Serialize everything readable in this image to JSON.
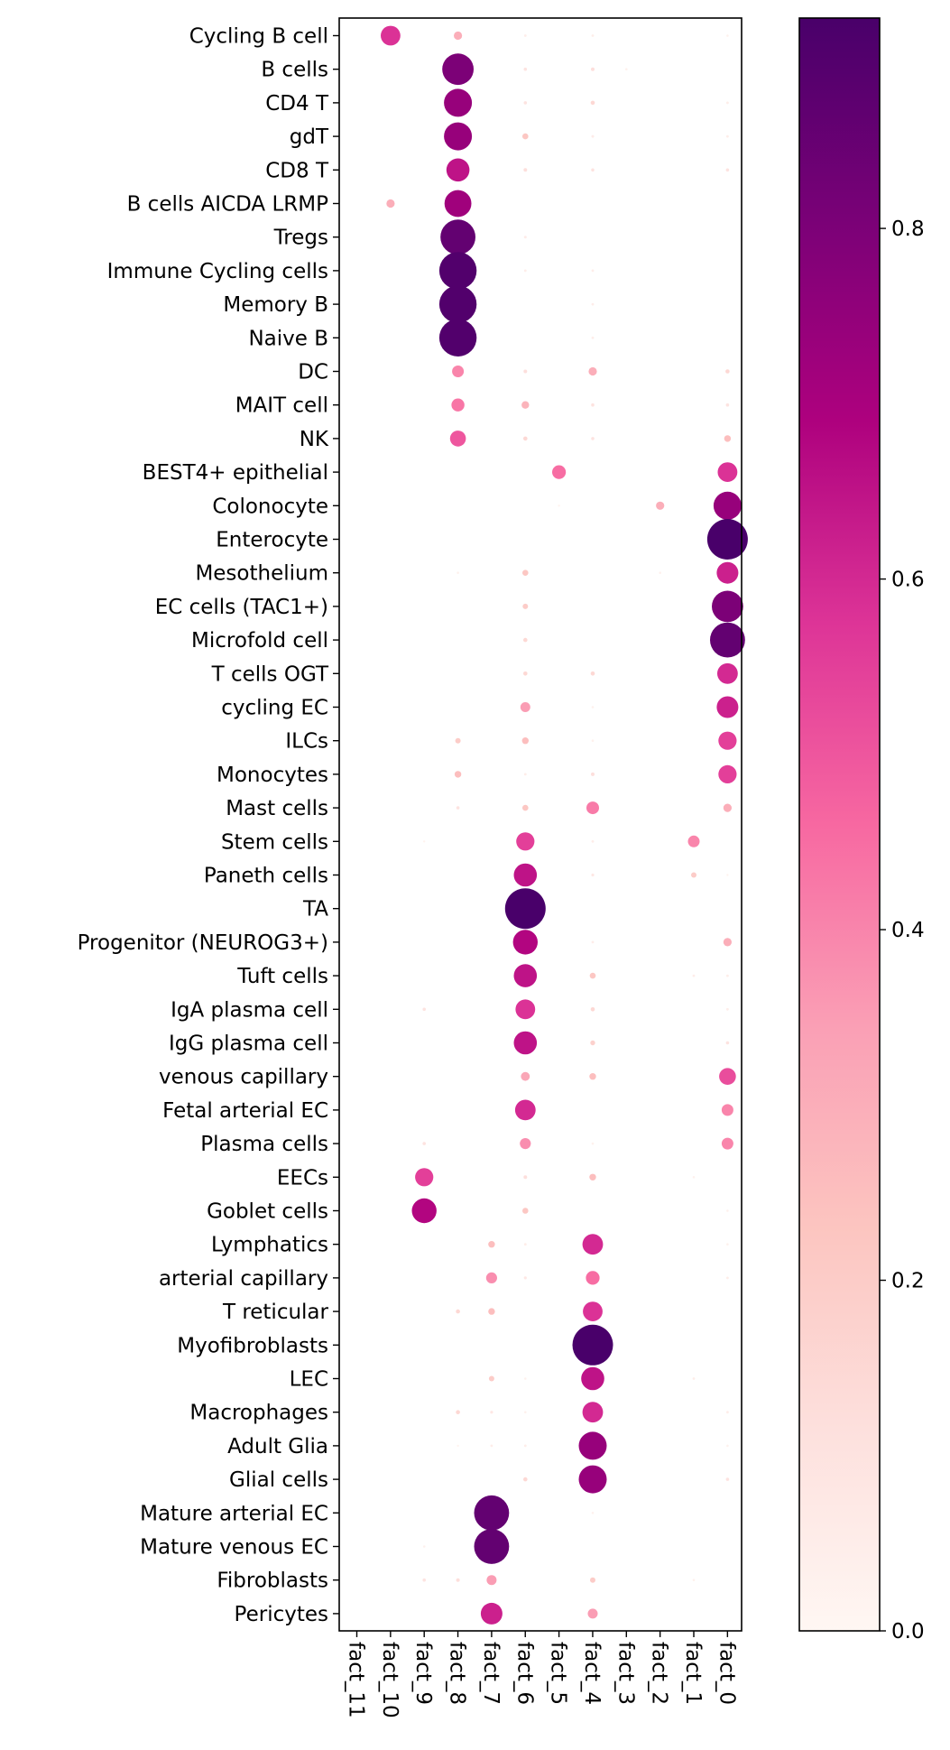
{
  "chart_data": {
    "type": "dotplot",
    "title": "",
    "xlabel": "",
    "ylabel": "",
    "colormap": "RdPu",
    "color_range": [
      0.0,
      0.92
    ],
    "colorbar_ticks": [
      "0.0",
      "0.2",
      "0.4",
      "0.6",
      "0.8"
    ],
    "colorbar_tick_values": [
      0.0,
      0.2,
      0.4,
      0.6,
      0.8
    ],
    "columns": [
      "fact_11",
      "fact_10",
      "fact_9",
      "fact_8",
      "fact_7",
      "fact_6",
      "fact_5",
      "fact_4",
      "fact_3",
      "fact_2",
      "fact_1",
      "fact_0"
    ],
    "rows": [
      "Cycling B cell",
      "B cells",
      "CD4 T",
      "gdT",
      "CD8 T",
      "B cells AICDA LRMP",
      "Tregs",
      "Immune Cycling cells",
      "Memory B",
      "Naive B",
      "DC",
      "MAIT cell",
      "NK",
      "BEST4+ epithelial",
      "Colonocyte",
      "Enterocyte",
      "Mesothelium",
      "EC cells (TAC1+)",
      "Microfold cell",
      "T cells OGT",
      "cycling EC",
      "ILCs",
      "Monocytes",
      "Mast cells",
      "Stem cells",
      "Paneth cells",
      "TA",
      "Progenitor (NEUROG3+)",
      "Tuft cells",
      "IgA plasma cell",
      "IgG plasma cell",
      "venous capillary",
      "Fetal arterial EC",
      "Plasma cells",
      "EECs",
      "Goblet cells",
      "Lymphatics",
      "arterial capillary",
      "T reticular",
      "Myofibroblasts",
      "LEC",
      "Macrophages",
      "Adult Glia",
      "Glial cells",
      "Mature arterial EC",
      "Mature venous EC",
      "Fibroblasts",
      "Pericytes"
    ],
    "values": [
      [
        0,
        0.58,
        0,
        0.3,
        0,
        0.05,
        0,
        0.05,
        0,
        0,
        0,
        0.03
      ],
      [
        0,
        0,
        0,
        0.8,
        0,
        0.1,
        0,
        0.12,
        0.03,
        0,
        0,
        0
      ],
      [
        0,
        0,
        0,
        0.74,
        0,
        0.1,
        0,
        0.15,
        0,
        0,
        0,
        0.05
      ],
      [
        0,
        0,
        0,
        0.74,
        0,
        0.22,
        0,
        0.06,
        0,
        0,
        0,
        0.05
      ],
      [
        0,
        0,
        0,
        0.65,
        0,
        0.12,
        0,
        0.1,
        0,
        0,
        0,
        0.1
      ],
      [
        0,
        0.3,
        0,
        0.72,
        0,
        0,
        0,
        0,
        0,
        0,
        0,
        0
      ],
      [
        0,
        0,
        0,
        0.86,
        0,
        0.06,
        0,
        0,
        0,
        0,
        0,
        0
      ],
      [
        0,
        0,
        0,
        0.9,
        0,
        0.05,
        0,
        0.05,
        0,
        0,
        0,
        0
      ],
      [
        0,
        0,
        0,
        0.9,
        0,
        0,
        0,
        0.05,
        0,
        0,
        0,
        0
      ],
      [
        0,
        0,
        0,
        0.9,
        0,
        0,
        0,
        0.05,
        0,
        0,
        0,
        0
      ],
      [
        0,
        0,
        0,
        0.4,
        0,
        0.12,
        0,
        0.3,
        0,
        0,
        0,
        0.15
      ],
      [
        0,
        0,
        0,
        0.43,
        0,
        0.28,
        0,
        0.1,
        0,
        0,
        0,
        0.1
      ],
      [
        0,
        0,
        0,
        0.5,
        0,
        0.15,
        0,
        0.1,
        0,
        0,
        0,
        0.25
      ],
      [
        0,
        0,
        0,
        0,
        0,
        0,
        0.45,
        0,
        0,
        0,
        0,
        0.58
      ],
      [
        0,
        0,
        0,
        0,
        0,
        0,
        0.02,
        0,
        0,
        0.3,
        0,
        0.74
      ],
      [
        0,
        0,
        0,
        0,
        0,
        0,
        0,
        0,
        0,
        0,
        0,
        0.95
      ],
      [
        0,
        0,
        0,
        0.03,
        0,
        0.22,
        0,
        0,
        0,
        0.03,
        0,
        0.62
      ],
      [
        0,
        0,
        0,
        0,
        0,
        0.2,
        0,
        0,
        0,
        0,
        0,
        0.8
      ],
      [
        0,
        0,
        0,
        0,
        0,
        0.15,
        0,
        0,
        0,
        0,
        0,
        0.86
      ],
      [
        0,
        0,
        0,
        0,
        0,
        0.15,
        0,
        0.15,
        0,
        0,
        0,
        0.6
      ],
      [
        0,
        0,
        0,
        0,
        0,
        0.35,
        0,
        0.03,
        0,
        0,
        0,
        0.62
      ],
      [
        0,
        0,
        0,
        0.2,
        0,
        0.25,
        0,
        0.03,
        0,
        0,
        0,
        0.55
      ],
      [
        0,
        0,
        0,
        0.25,
        0,
        0.05,
        0,
        0.12,
        0,
        0,
        0,
        0.55
      ],
      [
        0,
        0,
        0,
        0.1,
        0,
        0.22,
        0,
        0.42,
        0,
        0,
        0,
        0.3
      ],
      [
        0,
        0,
        0.02,
        0,
        0,
        0.55,
        0,
        0.05,
        0,
        0,
        0.4,
        0
      ],
      [
        0,
        0,
        0,
        0,
        0,
        0.65,
        0,
        0.08,
        0,
        0,
        0.2,
        0.02
      ],
      [
        0,
        0,
        0,
        0,
        0,
        0.95,
        0,
        0,
        0,
        0,
        0,
        0
      ],
      [
        0,
        0,
        0,
        0,
        0,
        0.68,
        0,
        0.05,
        0,
        0,
        0,
        0.3
      ],
      [
        0,
        0,
        0,
        0,
        0,
        0.65,
        0,
        0.22,
        0,
        0,
        0.05,
        0.05
      ],
      [
        0,
        0,
        0.1,
        0,
        0,
        0.58,
        0,
        0.15,
        0,
        0,
        0,
        0.05
      ],
      [
        0,
        0,
        0,
        0,
        0,
        0.65,
        0,
        0.18,
        0,
        0,
        0,
        0.1
      ],
      [
        0,
        0,
        0,
        0,
        0,
        0.32,
        0,
        0.25,
        0,
        0,
        0,
        0.52
      ],
      [
        0,
        0,
        0,
        0,
        0,
        0.6,
        0,
        0,
        0,
        0,
        0,
        0.4
      ],
      [
        0,
        0,
        0.1,
        0,
        0,
        0.38,
        0,
        0.03,
        0,
        0,
        0,
        0.4
      ],
      [
        0,
        0,
        0.55,
        0,
        0,
        0.12,
        0,
        0.25,
        0,
        0,
        0.03,
        0
      ],
      [
        0,
        0,
        0.68,
        0,
        0,
        0.22,
        0,
        0,
        0,
        0,
        0,
        0.03
      ],
      [
        0,
        0,
        0,
        0,
        0.25,
        0.05,
        0,
        0.6,
        0,
        0,
        0,
        0.03
      ],
      [
        0,
        0,
        0,
        0,
        0.38,
        0.08,
        0,
        0.45,
        0,
        0,
        0,
        0.05
      ],
      [
        0,
        0,
        0,
        0.15,
        0.25,
        0,
        0,
        0.58,
        0,
        0,
        0,
        0
      ],
      [
        0,
        0,
        0,
        0,
        0,
        0,
        0,
        0.95,
        0,
        0,
        0,
        0
      ],
      [
        0,
        0,
        0,
        0,
        0.2,
        0.03,
        0,
        0.65,
        0,
        0,
        0.05,
        0
      ],
      [
        0,
        0,
        0,
        0.15,
        0.08,
        0.03,
        0,
        0.6,
        0,
        0,
        0,
        0.05
      ],
      [
        0,
        0,
        0,
        0.02,
        0.05,
        0.05,
        0,
        0.74,
        0,
        0,
        0,
        0.03
      ],
      [
        0,
        0,
        0,
        0,
        0,
        0.15,
        0,
        0.74,
        0,
        0,
        0,
        0.1
      ],
      [
        0,
        0,
        0,
        0,
        0.86,
        0,
        0,
        0.03,
        0,
        0,
        0,
        0
      ],
      [
        0,
        0,
        0.03,
        0,
        0.86,
        0,
        0,
        0,
        0,
        0,
        0,
        0
      ],
      [
        0,
        0,
        0.1,
        0.12,
        0.35,
        0,
        0,
        0.2,
        0,
        0,
        0.03,
        0
      ],
      [
        0,
        0,
        0,
        0,
        0.62,
        0,
        0,
        0.35,
        0,
        0,
        0,
        0
      ]
    ]
  }
}
